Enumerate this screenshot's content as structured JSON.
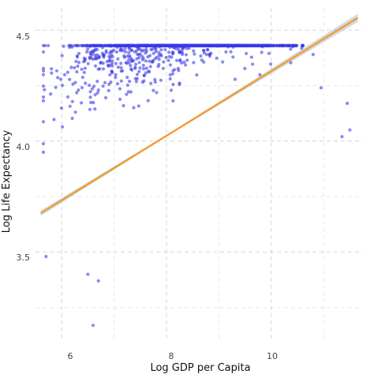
{
  "chart_data": {
    "type": "scatter",
    "title": "",
    "xlabel": "Log GDP per Capita",
    "ylabel": "Log Life Expectancy",
    "xlim": [
      5.5,
      11.75
    ],
    "ylim": [
      3.1,
      4.6
    ],
    "x_ticks": [
      6,
      8,
      10
    ],
    "x_tick_labels": [
      "6",
      "8",
      "10"
    ],
    "y_ticks": [
      3.5,
      4.0,
      4.5
    ],
    "y_tick_labels": [
      "3.5",
      "4.0",
      "4.5"
    ],
    "grid": true,
    "legend": "none",
    "point_color": "#3a3ae8",
    "fit_line_color": "#f59a23",
    "confidence_band_color": "#a9b9c9",
    "fit_line": {
      "x": [
        5.6,
        11.65
      ],
      "y": [
        3.675,
        4.555
      ],
      "ci_x": [
        5.6,
        8.1,
        11.65
      ],
      "ci_halfwidth": [
        0.012,
        0.004,
        0.018
      ]
    },
    "point_cloud": {
      "n": 1600,
      "seed": 7,
      "x_mean": 8.3,
      "x_sd": 1.15,
      "x_min": 5.65,
      "x_max": 10.6,
      "curve": {
        "a": 2.9,
        "b": 0.33,
        "c": -0.016
      },
      "noise_sd": 0.09,
      "outliers": [
        {
          "x": 6.6,
          "y": 3.17
        },
        {
          "x": 11.5,
          "y": 4.05
        },
        {
          "x": 11.45,
          "y": 4.17
        },
        {
          "x": 11.35,
          "y": 4.02
        },
        {
          "x": 10.95,
          "y": 4.24
        },
        {
          "x": 10.8,
          "y": 4.39
        },
        {
          "x": 6.5,
          "y": 3.4
        },
        {
          "x": 6.7,
          "y": 3.37
        },
        {
          "x": 5.7,
          "y": 3.48
        }
      ]
    }
  }
}
